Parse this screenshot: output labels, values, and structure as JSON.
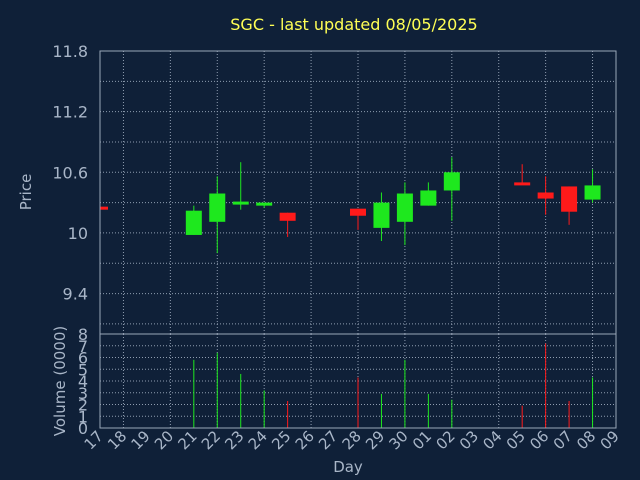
{
  "chart_data": [
    {
      "type": "candlestick",
      "title": "SGC - last updated 08/05/2025",
      "ylabel": "Price",
      "ylim": [
        9.0,
        11.8
      ],
      "yticks": [
        "11.8",
        "11.2",
        "10.6",
        "10",
        "9.4"
      ],
      "ytick_values": [
        11.8,
        11.2,
        10.6,
        10.0,
        9.4
      ],
      "grid": true,
      "colors": {
        "up": "#1ee81e",
        "down": "#ff1a1a",
        "background": "#0f2038",
        "title": "#ffff55",
        "text": "#a9b6c8"
      },
      "candles": [
        {
          "day": "17",
          "open": 10.26,
          "close": 10.23,
          "high": 10.26,
          "low": 10.23
        },
        {
          "day": "21",
          "open": 9.98,
          "close": 10.22,
          "high": 10.27,
          "low": 9.98
        },
        {
          "day": "22",
          "open": 10.11,
          "close": 10.39,
          "high": 10.56,
          "low": 9.8
        },
        {
          "day": "23",
          "open": 10.29,
          "close": 10.31,
          "high": 10.7,
          "low": 10.23
        },
        {
          "day": "24",
          "open": 10.27,
          "close": 10.3,
          "high": 10.3,
          "low": 10.25
        },
        {
          "day": "25",
          "open": 10.2,
          "close": 10.12,
          "high": 10.2,
          "low": 9.96
        },
        {
          "day": "28",
          "open": 10.24,
          "close": 10.17,
          "high": 10.24,
          "low": 10.03
        },
        {
          "day": "29",
          "open": 10.05,
          "close": 10.3,
          "high": 10.4,
          "low": 9.92
        },
        {
          "day": "30",
          "open": 10.11,
          "close": 10.39,
          "high": 10.5,
          "low": 9.88
        },
        {
          "day": "01",
          "open": 10.27,
          "close": 10.42,
          "high": 10.5,
          "low": 10.27
        },
        {
          "day": "02",
          "open": 10.42,
          "close": 10.6,
          "high": 10.75,
          "low": 10.12
        },
        {
          "day": "05",
          "open": 10.5,
          "close": 10.48,
          "high": 10.68,
          "low": 10.48
        },
        {
          "day": "06",
          "open": 10.4,
          "close": 10.34,
          "high": 10.56,
          "low": 10.18
        },
        {
          "day": "07",
          "open": 10.46,
          "close": 10.21,
          "high": 10.46,
          "low": 10.08
        },
        {
          "day": "08",
          "open": 10.33,
          "close": 10.47,
          "high": 10.63,
          "low": 10.3
        }
      ]
    },
    {
      "type": "bar",
      "ylabel": "Volume (0000)",
      "xlabel": "Day",
      "ylim": [
        0,
        8
      ],
      "yticks": [
        "8",
        "7",
        "6",
        "5",
        "4",
        "3",
        "2",
        "1",
        "0"
      ],
      "ytick_values": [
        8,
        7,
        6,
        5,
        4,
        3,
        2,
        1,
        0
      ],
      "grid": true,
      "categories": [
        "17",
        "18",
        "19",
        "20",
        "21",
        "22",
        "23",
        "24",
        "25",
        "26",
        "27",
        "28",
        "29",
        "30",
        "01",
        "02",
        "03",
        "04",
        "05",
        "06",
        "07",
        "08",
        "09"
      ],
      "volumes": [
        {
          "day": "21",
          "value": 5.8,
          "direction": "up"
        },
        {
          "day": "22",
          "value": 6.4,
          "direction": "up"
        },
        {
          "day": "23",
          "value": 4.6,
          "direction": "up"
        },
        {
          "day": "24",
          "value": 3.2,
          "direction": "up"
        },
        {
          "day": "25",
          "value": 2.3,
          "direction": "down"
        },
        {
          "day": "28",
          "value": 4.3,
          "direction": "down"
        },
        {
          "day": "29",
          "value": 2.9,
          "direction": "up"
        },
        {
          "day": "30",
          "value": 5.8,
          "direction": "up"
        },
        {
          "day": "01",
          "value": 2.9,
          "direction": "up"
        },
        {
          "day": "02",
          "value": 2.4,
          "direction": "up"
        },
        {
          "day": "05",
          "value": 1.9,
          "direction": "down"
        },
        {
          "day": "06",
          "value": 7.2,
          "direction": "down"
        },
        {
          "day": "07",
          "value": 2.3,
          "direction": "down"
        },
        {
          "day": "08",
          "value": 4.3,
          "direction": "up"
        }
      ]
    }
  ]
}
